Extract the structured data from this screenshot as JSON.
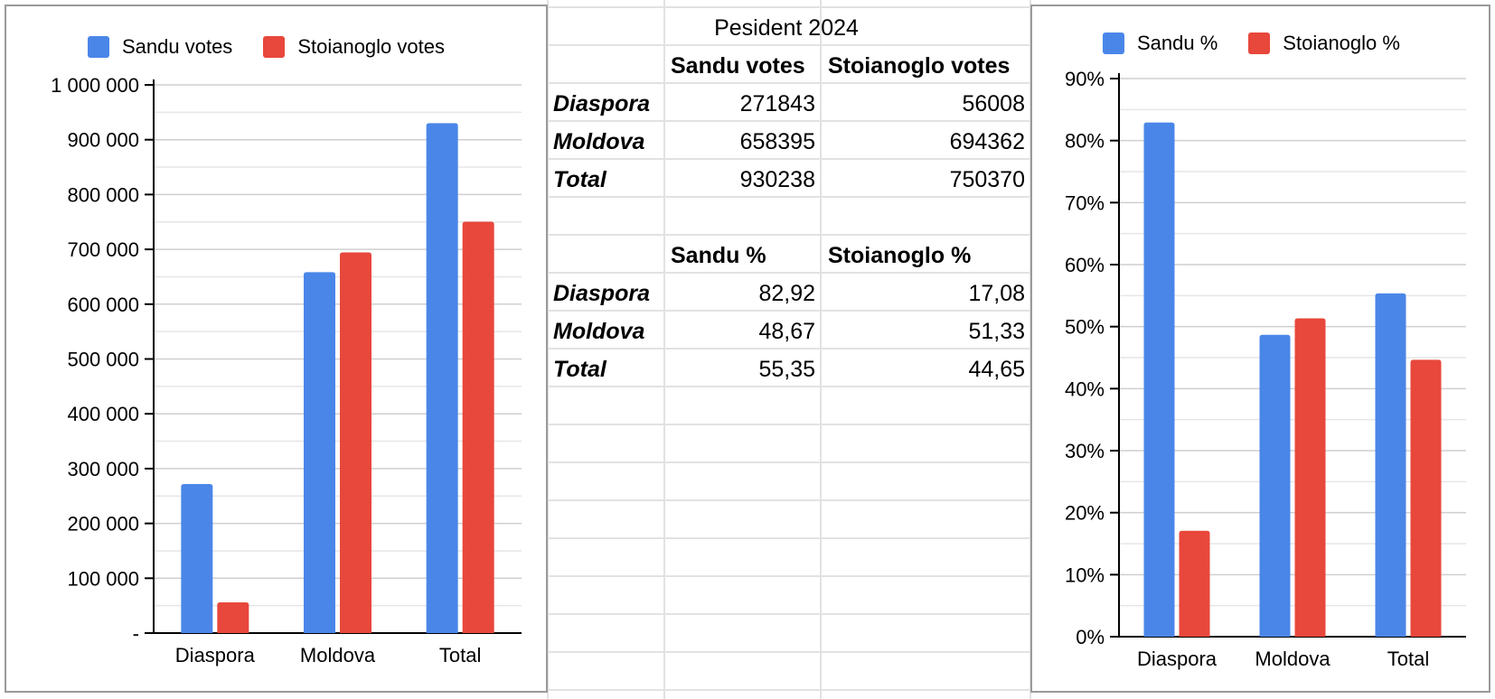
{
  "table": {
    "title": "Pesident 2024",
    "votes": {
      "headers": [
        "Sandu votes",
        "Stoianoglo votes"
      ],
      "rows": [
        {
          "label": "Diaspora",
          "values": [
            "271843",
            "56008"
          ]
        },
        {
          "label": "Moldova",
          "values": [
            "658395",
            "694362"
          ]
        },
        {
          "label": "Total",
          "values": [
            "930238",
            "750370"
          ]
        }
      ]
    },
    "percent": {
      "headers": [
        "Sandu %",
        "Stoianoglo %"
      ],
      "rows": [
        {
          "label": "Diaspora",
          "values": [
            "82,92",
            "17,08"
          ]
        },
        {
          "label": "Moldova",
          "values": [
            "48,67",
            "51,33"
          ]
        },
        {
          "label": "Total",
          "values": [
            "55,35",
            "44,65"
          ]
        }
      ]
    }
  },
  "colors": {
    "sandu": "#4a86e8",
    "stoianoglo": "#e8473b",
    "grid": "#cfcfcf",
    "sheet_grid": "#e2e2e2"
  },
  "chart_data": [
    {
      "type": "bar",
      "title": "",
      "xlabel": "",
      "ylabel": "",
      "categories": [
        "Diaspora",
        "Moldova",
        "Total"
      ],
      "series": [
        {
          "name": "Sandu votes",
          "values": [
            271843,
            658395,
            930238
          ]
        },
        {
          "name": "Stoianoglo votes",
          "values": [
            56008,
            694362,
            750370
          ]
        }
      ],
      "ylim": [
        0,
        1000000
      ],
      "yticks": [
        0,
        100000,
        200000,
        300000,
        400000,
        500000,
        600000,
        700000,
        800000,
        900000,
        1000000
      ],
      "ytick_labels": [
        "-",
        "100 000",
        "200 000",
        "300 000",
        "400 000",
        "500 000",
        "600 000",
        "700 000",
        "800 000",
        "900 000",
        "1 000 000"
      ],
      "grid": true,
      "legend": "top"
    },
    {
      "type": "bar",
      "title": "",
      "xlabel": "",
      "ylabel": "",
      "categories": [
        "Diaspora",
        "Moldova",
        "Total"
      ],
      "series": [
        {
          "name": "Sandu %",
          "values": [
            82.92,
            48.67,
            55.35
          ]
        },
        {
          "name": "Stoianoglo %",
          "values": [
            17.08,
            51.33,
            44.65
          ]
        }
      ],
      "ylim": [
        0,
        90
      ],
      "yticks": [
        0,
        10,
        20,
        30,
        40,
        50,
        60,
        70,
        80,
        90
      ],
      "ytick_labels": [
        "0%",
        "10%",
        "20%",
        "30%",
        "40%",
        "50%",
        "60%",
        "70%",
        "80%",
        "90%"
      ],
      "grid": true,
      "legend": "top"
    }
  ]
}
